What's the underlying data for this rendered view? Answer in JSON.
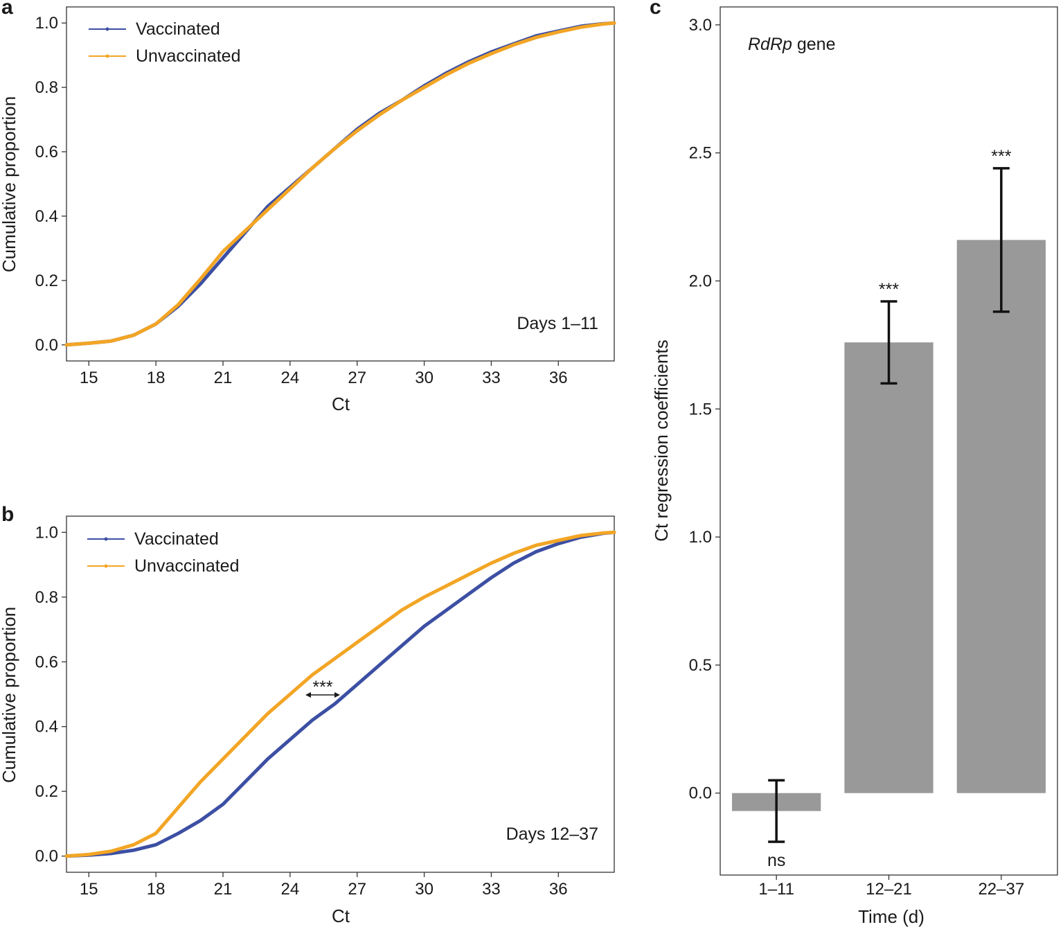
{
  "chart_data": [
    {
      "panel": "a",
      "type": "line",
      "title": "",
      "xlabel": "Ct",
      "ylabel": "Cumulative proportion",
      "annotation": "Days 1–11",
      "xlim": [
        14,
        38.5
      ],
      "ylim": [
        -0.05,
        1.05
      ],
      "xticks": [
        "15",
        "18",
        "21",
        "24",
        "27",
        "30",
        "33",
        "36"
      ],
      "yticks": [
        "0.0",
        "0.2",
        "0.4",
        "0.6",
        "0.8",
        "1.0"
      ],
      "legend_position": "top-left",
      "x": [
        14,
        15,
        16,
        17,
        18,
        19,
        20,
        21,
        22,
        23,
        24,
        25,
        26,
        27,
        28,
        29,
        30,
        31,
        32,
        33,
        34,
        35,
        36,
        37,
        38,
        38.5
      ],
      "series": [
        {
          "name": "Vaccinated",
          "color": "#3c4fa3",
          "values": [
            0.0,
            0.005,
            0.012,
            0.03,
            0.065,
            0.12,
            0.19,
            0.27,
            0.35,
            0.43,
            0.49,
            0.55,
            0.61,
            0.67,
            0.72,
            0.76,
            0.805,
            0.845,
            0.88,
            0.91,
            0.935,
            0.96,
            0.975,
            0.99,
            0.998,
            1.0
          ]
        },
        {
          "name": "Unvaccinated",
          "color": "#f2a525",
          "values": [
            0.0,
            0.005,
            0.012,
            0.03,
            0.065,
            0.125,
            0.205,
            0.29,
            0.355,
            0.42,
            0.485,
            0.55,
            0.61,
            0.665,
            0.715,
            0.76,
            0.8,
            0.84,
            0.875,
            0.905,
            0.932,
            0.955,
            0.972,
            0.987,
            0.997,
            1.0
          ]
        }
      ]
    },
    {
      "panel": "b",
      "type": "line",
      "title": "",
      "xlabel": "Ct",
      "ylabel": "Cumulative proportion",
      "annotation": "Days 12–37",
      "significance": "***",
      "xlim": [
        14,
        38.5
      ],
      "ylim": [
        -0.05,
        1.05
      ],
      "xticks": [
        "15",
        "18",
        "21",
        "24",
        "27",
        "30",
        "33",
        "36"
      ],
      "yticks": [
        "0.0",
        "0.2",
        "0.4",
        "0.6",
        "0.8",
        "1.0"
      ],
      "legend_position": "top-left",
      "x": [
        14,
        15,
        16,
        17,
        18,
        19,
        20,
        21,
        22,
        23,
        24,
        25,
        26,
        27,
        28,
        29,
        30,
        31,
        32,
        33,
        34,
        35,
        36,
        37,
        38,
        38.5
      ],
      "series": [
        {
          "name": "Vaccinated",
          "color": "#3c4fa3",
          "values": [
            0.0,
            0.003,
            0.008,
            0.018,
            0.035,
            0.07,
            0.11,
            0.16,
            0.23,
            0.3,
            0.36,
            0.42,
            0.47,
            0.53,
            0.59,
            0.65,
            0.71,
            0.76,
            0.81,
            0.86,
            0.905,
            0.94,
            0.965,
            0.985,
            0.997,
            1.0
          ]
        },
        {
          "name": "Unvaccinated",
          "color": "#f2a525",
          "values": [
            0.0,
            0.005,
            0.015,
            0.035,
            0.07,
            0.15,
            0.23,
            0.3,
            0.37,
            0.44,
            0.5,
            0.56,
            0.61,
            0.66,
            0.71,
            0.76,
            0.8,
            0.835,
            0.87,
            0.905,
            0.935,
            0.96,
            0.975,
            0.99,
            0.998,
            1.0
          ]
        }
      ]
    },
    {
      "panel": "c",
      "type": "bar",
      "title": "",
      "annotation_italic": "RdRp",
      "annotation_rest": " gene",
      "xlabel": "Time (d)",
      "ylabel": "Ct regression coefficients",
      "ylim": [
        -0.32,
        3.07
      ],
      "yticks": [
        "0.0",
        "0.5",
        "1.0",
        "1.5",
        "2.0",
        "2.5",
        "3.0"
      ],
      "categories": [
        "1–11",
        "12–21",
        "22–37"
      ],
      "values": [
        -0.07,
        1.76,
        2.16
      ],
      "error_low": [
        -0.19,
        1.6,
        1.88
      ],
      "error_high": [
        0.05,
        1.92,
        2.44
      ],
      "significance": [
        "ns",
        "***",
        "***"
      ],
      "bar_color": "#999999"
    }
  ]
}
